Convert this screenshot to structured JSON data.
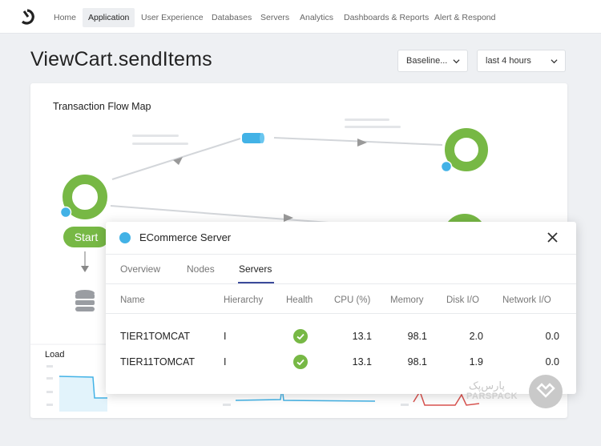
{
  "nav": {
    "items": [
      {
        "label": "Home"
      },
      {
        "label": "Application",
        "active": true
      },
      {
        "label": "User Experience"
      },
      {
        "label": "Databases"
      },
      {
        "label": "Servers"
      },
      {
        "label": "Analytics"
      },
      {
        "label": "Dashboards & Reports"
      },
      {
        "label": "Alert & Respond"
      }
    ]
  },
  "header": {
    "title": "ViewCart.sendItems",
    "baseline_dropdown": "Baseline...",
    "time_dropdown": "last 4 hours"
  },
  "flow_map": {
    "title": "Transaction Flow Map",
    "start_label": "Start",
    "load_label": "Load"
  },
  "modal": {
    "title": "ECommerce Server",
    "tabs": [
      {
        "label": "Overview"
      },
      {
        "label": "Nodes"
      },
      {
        "label": "Servers",
        "active": true
      }
    ],
    "columns": [
      "Name",
      "Hierarchy",
      "Health",
      "CPU (%)",
      "Memory",
      "Disk I/O",
      "Network I/O"
    ],
    "rows": [
      {
        "name": "TIER1TOMCAT",
        "hierarchy": "I",
        "health": "ok",
        "cpu": "13.1",
        "memory": "98.1",
        "disk": "2.0",
        "network": "0.0"
      },
      {
        "name": "TIER11TOMCAT",
        "hierarchy": "I",
        "health": "ok",
        "cpu": "13.1",
        "memory": "98.1",
        "disk": "1.9",
        "network": "0.0"
      }
    ]
  },
  "watermark": {
    "text": "پارس‌پک",
    "sub": "PARSPACK"
  },
  "colors": {
    "green": "#77b845",
    "blue": "#42b2e6",
    "tab_accent": "#3b4a9a",
    "red": "#d9534f"
  }
}
